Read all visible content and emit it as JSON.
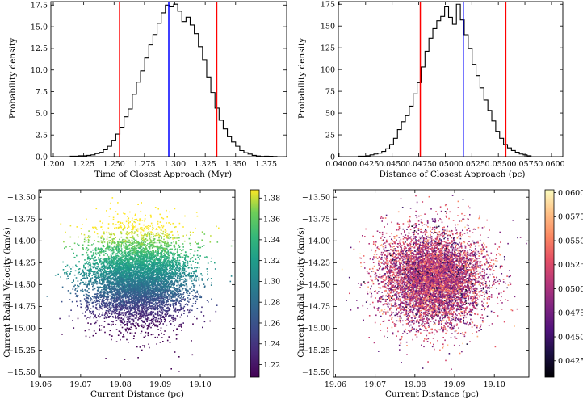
{
  "chart_data": [
    {
      "id": "hist-time",
      "type": "histogram",
      "xlabel": "Time of Closest Approach (Myr)",
      "ylabel": "Probability density",
      "xlim": [
        1.198,
        1.392
      ],
      "ylim": [
        0,
        17.9
      ],
      "xticks": [
        1.2,
        1.225,
        1.25,
        1.275,
        1.3,
        1.325,
        1.35,
        1.375
      ],
      "xtick_labels": [
        "1.200",
        "1.225",
        "1.250",
        "1.275",
        "1.300",
        "1.325",
        "1.350",
        "1.375"
      ],
      "yticks": [
        0,
        2.5,
        5.0,
        7.5,
        10.0,
        12.5,
        15.0,
        17.5
      ],
      "ytick_labels": [
        "0.0",
        "2.5",
        "5.0",
        "7.5",
        "10.0",
        "12.5",
        "15.0",
        "17.5"
      ],
      "bin_start": 1.214,
      "bin_width": 0.0034,
      "values": [
        0.05,
        0.05,
        0.1,
        0.1,
        0.15,
        0.2,
        0.35,
        0.5,
        0.8,
        1.2,
        1.9,
        2.6,
        3.4,
        4.6,
        5.5,
        7.2,
        8.6,
        9.9,
        11.4,
        12.9,
        14.1,
        15.4,
        16.6,
        17.5,
        17.3,
        17.6,
        16.8,
        15.6,
        16.1,
        15.2,
        14.2,
        12.7,
        11.2,
        9.2,
        7.4,
        5.6,
        4.2,
        3.2,
        2.3,
        1.7,
        1.2,
        0.7,
        0.45,
        0.3,
        0.15,
        0.08,
        0.03,
        0.05,
        0.04,
        0.02
      ],
      "vlines": [
        {
          "x": 1.2545,
          "color": "#ff0000"
        },
        {
          "x": 1.295,
          "color": "#0000ff"
        },
        {
          "x": 1.3345,
          "color": "#ff0000"
        }
      ]
    },
    {
      "id": "hist-dist",
      "type": "histogram",
      "xlabel": "Distance of Closest Approach (pc)",
      "ylabel": "Probability density",
      "xlim": [
        0.03993,
        0.06107
      ],
      "ylim": [
        0,
        178
      ],
      "xticks": [
        0.04,
        0.0425,
        0.045,
        0.0475,
        0.05,
        0.0525,
        0.055,
        0.0575,
        0.06
      ],
      "xtick_labels": [
        "0.0400",
        "0.0425",
        "0.0450",
        "0.0475",
        "0.0500",
        "0.0525",
        "0.0550",
        "0.0575",
        "0.0600"
      ],
      "yticks": [
        0,
        25,
        50,
        75,
        100,
        125,
        150,
        175
      ],
      "ytick_labels": [
        "0",
        "25",
        "50",
        "75",
        "100",
        "125",
        "150",
        "175"
      ],
      "bin_start": 0.0418,
      "bin_width": 0.00037,
      "values": [
        0.5,
        0.5,
        1,
        2,
        3,
        4,
        6,
        9,
        14,
        21,
        31,
        40,
        47,
        58,
        72,
        85,
        103,
        121,
        136,
        147,
        156,
        161,
        172,
        160,
        152,
        175,
        157,
        140,
        124,
        106,
        93,
        79,
        65,
        53,
        41,
        29,
        21,
        14,
        10,
        7,
        5,
        3,
        2,
        1
      ],
      "vlines": [
        {
          "x": 0.04765,
          "color": "#ff0000"
        },
        {
          "x": 0.0517,
          "color": "#0000ff"
        },
        {
          "x": 0.0557,
          "color": "#ff0000"
        }
      ]
    },
    {
      "id": "scatter-time",
      "type": "scatter",
      "xlabel": "Current Distance (pc)",
      "ylabel": "Current Radial Velocity (km/s)",
      "xlim": [
        19.0595,
        19.1087
      ],
      "ylim": [
        -15.56,
        -13.415
      ],
      "xticks": [
        19.06,
        19.07,
        19.08,
        19.09,
        19.1
      ],
      "xtick_labels": [
        "19.06",
        "19.07",
        "19.08",
        "19.09",
        "19.10"
      ],
      "yticks": [
        -13.5,
        -13.75,
        -14.0,
        -14.25,
        -14.5,
        -14.75,
        -15.0,
        -15.25,
        -15.5
      ],
      "ytick_labels": [
        "−13.50",
        "−13.75",
        "−14.00",
        "−14.25",
        "−14.50",
        "−14.75",
        "−15.00",
        "−15.25",
        "−15.50"
      ],
      "n_points": 7000,
      "x_center": 19.0845,
      "x_spread": 0.0065,
      "y_center": -14.43,
      "y_spread": 0.27,
      "colormap": "viridis",
      "colorbar": {
        "range": [
          1.208,
          1.388
        ],
        "ticks": [
          1.22,
          1.24,
          1.26,
          1.28,
          1.3,
          1.32,
          1.34,
          1.36,
          1.38
        ],
        "tick_labels": [
          "1.22",
          "1.24",
          "1.26",
          "1.28",
          "1.30",
          "1.32",
          "1.34",
          "1.36",
          "1.38"
        ]
      }
    },
    {
      "id": "scatter-dist",
      "type": "scatter",
      "xlabel": "Current Distance (pc)",
      "ylabel": "Current Radial Velocity (km/s)",
      "xlim": [
        19.0595,
        19.1087
      ],
      "ylim": [
        -15.56,
        -13.415
      ],
      "xticks": [
        19.06,
        19.07,
        19.08,
        19.09,
        19.1
      ],
      "xtick_labels": [
        "19.06",
        "19.07",
        "19.08",
        "19.09",
        "19.10"
      ],
      "yticks": [
        -13.5,
        -13.75,
        -14.0,
        -14.25,
        -14.5,
        -14.75,
        -15.0,
        -15.25,
        -15.5
      ],
      "ytick_labels": [
        "−13.50",
        "−13.75",
        "−14.00",
        "−14.25",
        "−14.50",
        "−14.75",
        "−15.00",
        "−15.25",
        "−15.50"
      ],
      "n_points": 7000,
      "x_center": 19.0845,
      "x_spread": 0.0065,
      "y_center": -14.43,
      "y_spread": 0.27,
      "colormap": "magma",
      "colorbar": {
        "range": [
          0.0408,
          0.0603
        ],
        "ticks": [
          0.0425,
          0.045,
          0.0475,
          0.05,
          0.0525,
          0.055,
          0.0575,
          0.06
        ],
        "tick_labels": [
          "0.0425",
          "0.0450",
          "0.0475",
          "0.0500",
          "0.0525",
          "0.0550",
          "0.0575",
          "0.0600"
        ]
      }
    }
  ]
}
